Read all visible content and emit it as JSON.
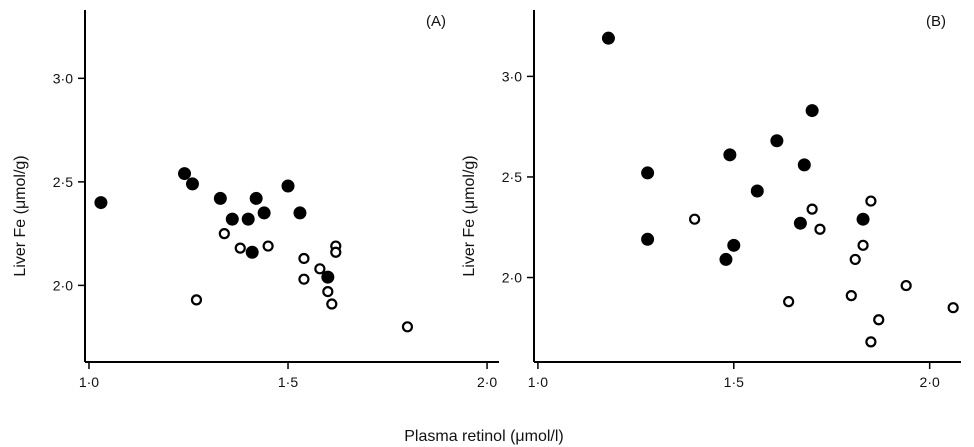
{
  "chart_data": [
    {
      "type": "scatter",
      "panel_label": "(A)",
      "ylabel": "Liver Fe (μmol/g)",
      "xlim": [
        0.99,
        2.03
      ],
      "ylim": [
        1.63,
        3.33
      ],
      "x_ticks": [
        {
          "value": 1.0,
          "label": "1·0"
        },
        {
          "value": 1.5,
          "label": "1·5"
        },
        {
          "value": 2.0,
          "label": "2·0"
        }
      ],
      "y_ticks": [
        {
          "value": 2.0,
          "label": "2·0"
        },
        {
          "value": 2.5,
          "label": "2·5"
        },
        {
          "value": 3.0,
          "label": "3·0"
        }
      ],
      "series": [
        {
          "marker": "filled-circle",
          "points": [
            [
              1.03,
              2.4
            ],
            [
              1.24,
              2.54
            ],
            [
              1.26,
              2.49
            ],
            [
              1.33,
              2.42
            ],
            [
              1.36,
              2.32
            ],
            [
              1.4,
              2.32
            ],
            [
              1.42,
              2.42
            ],
            [
              1.44,
              2.35
            ],
            [
              1.41,
              2.16
            ],
            [
              1.5,
              2.48
            ],
            [
              1.53,
              2.35
            ],
            [
              1.6,
              2.04
            ]
          ]
        },
        {
          "marker": "open-circle",
          "points": [
            [
              1.27,
              1.93
            ],
            [
              1.34,
              2.25
            ],
            [
              1.38,
              2.18
            ],
            [
              1.45,
              2.19
            ],
            [
              1.54,
              2.13
            ],
            [
              1.54,
              2.03
            ],
            [
              1.58,
              2.08
            ],
            [
              1.6,
              1.97
            ],
            [
              1.61,
              1.91
            ],
            [
              1.62,
              2.19
            ],
            [
              1.62,
              2.16
            ],
            [
              1.8,
              1.8
            ]
          ]
        }
      ]
    },
    {
      "type": "scatter",
      "panel_label": "(B)",
      "ylabel": "Liver Fe (μmol/g)",
      "xlim": [
        0.99,
        2.08
      ],
      "ylim": [
        1.58,
        3.33
      ],
      "x_ticks": [
        {
          "value": 1.0,
          "label": "1·0"
        },
        {
          "value": 1.5,
          "label": "1·5"
        },
        {
          "value": 2.0,
          "label": "2·0"
        }
      ],
      "y_ticks": [
        {
          "value": 2.0,
          "label": "2·0"
        },
        {
          "value": 2.5,
          "label": "2·5"
        },
        {
          "value": 3.0,
          "label": "3·0"
        }
      ],
      "series": [
        {
          "marker": "filled-circle",
          "points": [
            [
              1.18,
              3.19
            ],
            [
              1.28,
              2.52
            ],
            [
              1.28,
              2.19
            ],
            [
              1.48,
              2.09
            ],
            [
              1.49,
              2.61
            ],
            [
              1.5,
              2.16
            ],
            [
              1.56,
              2.43
            ],
            [
              1.61,
              2.68
            ],
            [
              1.67,
              2.27
            ],
            [
              1.68,
              2.56
            ],
            [
              1.7,
              2.83
            ],
            [
              1.83,
              2.29
            ]
          ]
        },
        {
          "marker": "open-circle",
          "points": [
            [
              1.4,
              2.29
            ],
            [
              1.64,
              1.88
            ],
            [
              1.7,
              2.34
            ],
            [
              1.72,
              2.24
            ],
            [
              1.8,
              1.91
            ],
            [
              1.81,
              2.09
            ],
            [
              1.83,
              2.16
            ],
            [
              1.85,
              2.38
            ],
            [
              1.85,
              1.68
            ],
            [
              1.87,
              1.79
            ],
            [
              1.94,
              1.96
            ],
            [
              2.06,
              1.85
            ]
          ]
        }
      ]
    }
  ],
  "shared_xlabel": "Plasma retinol (μmol/l)"
}
